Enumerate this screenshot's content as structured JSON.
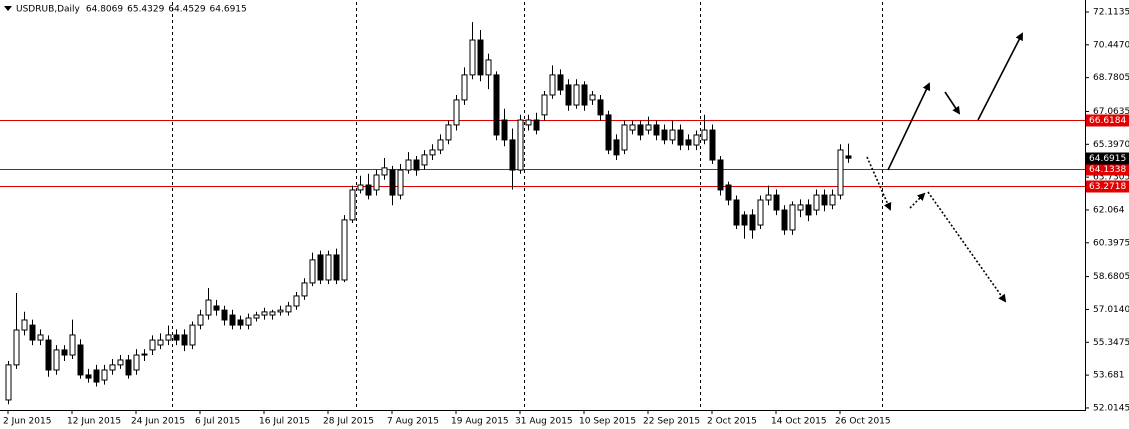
{
  "chart_data": {
    "type": "candlestick",
    "title": "USDRUB,Daily",
    "categories": [
      "2 Jun 2015",
      null,
      null,
      null,
      null,
      null,
      null,
      null,
      "12 Jun 2015",
      null,
      null,
      null,
      null,
      null,
      null,
      null,
      "24 Jun 2015",
      null,
      null,
      null,
      null,
      null,
      null,
      null,
      "6 Jul 2015",
      null,
      null,
      null,
      null,
      null,
      null,
      null,
      "16 Jul 2015",
      null,
      null,
      null,
      null,
      null,
      null,
      null,
      "28 Jul 2015",
      null,
      null,
      null,
      null,
      null,
      null,
      null,
      "7 Aug 2015",
      null,
      null,
      null,
      null,
      null,
      null,
      null,
      "19 Aug 2015",
      null,
      null,
      null,
      null,
      null,
      null,
      null,
      "31 Aug 2015",
      null,
      null,
      null,
      null,
      null,
      null,
      null,
      "10 Sep 2015",
      null,
      null,
      null,
      null,
      null,
      null,
      null,
      "22 Sep 2015",
      null,
      null,
      null,
      null,
      null,
      null,
      null,
      "2 Oct 2015",
      null,
      null,
      null,
      null,
      null,
      null,
      null,
      "14 Oct 2015",
      null,
      null,
      null,
      null,
      null,
      null,
      null,
      "26 Oct 2015",
      null
    ],
    "open": [
      52.42,
      54.2,
      55.97,
      56.22,
      55.46,
      55.46,
      53.94,
      54.96,
      54.7,
      55.21,
      53.69,
      53.94,
      53.43,
      53.94,
      54.2,
      54.45,
      53.94,
      54.7,
      54.96,
      55.21,
      55.46,
      55.72,
      55.72,
      55.21,
      56.22,
      56.73,
      57.19,
      56.98,
      56.73,
      56.48,
      56.22,
      56.58,
      56.73,
      56.73,
      56.89,
      56.89,
      57.19,
      57.7,
      58.36,
      59.78,
      58.51,
      59.78,
      58.51,
      61.56,
      63.08,
      63.33,
      63.08,
      63.84,
      64.09,
      62.82,
      64.09,
      64.6,
      64.35,
      64.86,
      65.11,
      65.62,
      66.38,
      67.65,
      68.92,
      70.69,
      68.92,
      68.92,
      66.63,
      65.62,
      64.09,
      66.38,
      66.63,
      66.89,
      67.9,
      68.92,
      68.41,
      67.39,
      68.41,
      67.65,
      67.65,
      66.89,
      65.62,
      65.11,
      66.12,
      66.38,
      66.12,
      66.38,
      66.12,
      65.62,
      66.12,
      65.62,
      65.36,
      65.62,
      66.12,
      64.6,
      63.33,
      62.57,
      61.81,
      61.81,
      61.3,
      62.57,
      62.82,
      62.06,
      61.05,
      62.06,
      62.32,
      62.06,
      62.82,
      62.32,
      62.82,
      64.8069
    ],
    "high": [
      54.4,
      57.85,
      56.9,
      56.5,
      56.0,
      55.7,
      55.2,
      55.2,
      56.5,
      55.5,
      54.0,
      54.2,
      54.2,
      54.5,
      54.7,
      54.7,
      55.0,
      55.0,
      55.7,
      55.8,
      56.2,
      56.0,
      56.0,
      56.4,
      57.0,
      58.1,
      57.5,
      57.2,
      57.0,
      56.7,
      56.8,
      56.9,
      57.1,
      57.0,
      57.2,
      57.4,
      57.9,
      58.6,
      59.9,
      60.0,
      60.0,
      60.1,
      61.8,
      63.3,
      63.8,
      63.9,
      64.1,
      64.7,
      64.3,
      64.4,
      65.0,
      64.8,
      65.1,
      65.4,
      65.9,
      66.6,
      67.9,
      69.3,
      71.6,
      71.2,
      70.0,
      69.1,
      67.2,
      66.2,
      66.9,
      66.9,
      67.0,
      68.1,
      69.4,
      69.2,
      68.7,
      68.7,
      68.6,
      68.1,
      67.9,
      67.1,
      65.9,
      66.6,
      66.6,
      66.6,
      66.8,
      66.6,
      66.4,
      66.6,
      66.4,
      65.9,
      66.1,
      66.9,
      66.4,
      64.8,
      63.5,
      62.8,
      62.0,
      62.1,
      62.8,
      63.3,
      63.1,
      62.3,
      62.5,
      62.6,
      62.6,
      63.1,
      63.1,
      63.1,
      65.4,
      65.4329
    ],
    "low": [
      52.2,
      54.0,
      55.7,
      55.2,
      55.2,
      53.6,
      53.7,
      54.4,
      54.5,
      53.5,
      53.3,
      53.1,
      53.2,
      53.7,
      54.0,
      53.5,
      53.7,
      54.4,
      54.7,
      55.0,
      55.2,
      55.2,
      54.9,
      55.0,
      56.0,
      56.5,
      56.7,
      56.2,
      56.0,
      56.0,
      56.0,
      56.4,
      56.5,
      56.5,
      56.7,
      56.7,
      57.0,
      57.5,
      58.2,
      58.3,
      58.3,
      58.3,
      58.4,
      61.4,
      62.9,
      62.6,
      62.8,
      63.6,
      62.3,
      62.6,
      63.9,
      63.8,
      64.1,
      64.6,
      64.9,
      65.4,
      66.1,
      67.4,
      68.7,
      68.6,
      68.2,
      65.6,
      65.3,
      63.1,
      63.9,
      66.1,
      65.9,
      66.6,
      67.7,
      67.9,
      67.1,
      67.2,
      67.1,
      67.4,
      66.6,
      64.9,
      64.6,
      64.9,
      65.9,
      65.6,
      65.9,
      65.6,
      65.4,
      65.4,
      65.1,
      65.1,
      65.1,
      65.4,
      64.4,
      62.8,
      62.3,
      61.1,
      60.6,
      60.6,
      61.1,
      62.3,
      61.8,
      60.8,
      60.8,
      61.7,
      61.5,
      61.8,
      62.0,
      62.1,
      62.6,
      64.4529
    ],
    "close": [
      54.2,
      55.97,
      56.48,
      55.46,
      55.72,
      53.94,
      54.96,
      54.7,
      55.72,
      53.69,
      53.53,
      53.33,
      53.94,
      54.2,
      54.45,
      53.69,
      54.7,
      54.75,
      55.46,
      55.46,
      55.72,
      55.46,
      55.21,
      56.22,
      56.73,
      57.49,
      56.98,
      56.48,
      56.22,
      56.22,
      56.58,
      56.73,
      56.89,
      56.89,
      56.98,
      57.19,
      57.7,
      58.36,
      59.53,
      58.51,
      59.78,
      58.51,
      61.56,
      63.08,
      63.33,
      62.82,
      63.84,
      64.2,
      62.82,
      64.09,
      64.6,
      64.09,
      64.86,
      65.11,
      65.62,
      66.38,
      67.65,
      68.92,
      70.69,
      68.92,
      69.68,
      65.87,
      65.62,
      64.09,
      66.63,
      66.63,
      66.12,
      67.9,
      68.92,
      68.15,
      67.39,
      68.41,
      67.39,
      67.9,
      66.89,
      65.11,
      64.86,
      66.38,
      66.38,
      65.87,
      66.38,
      65.87,
      65.62,
      66.12,
      65.36,
      65.36,
      65.87,
      66.12,
      64.6,
      63.08,
      62.57,
      61.3,
      61.3,
      61.05,
      62.57,
      62.82,
      62.06,
      61.05,
      62.32,
      62.32,
      61.81,
      62.82,
      62.32,
      62.82,
      65.11,
      64.6915
    ],
    "ylim": [
      51.91,
      72.62
    ],
    "yticks": [
      72.1135,
      {
        "value": 70.447,
        "label": "70.4470"
      },
      68.7805,
      67.0635,
      {
        "value": 65.397,
        "label": "65.3970"
      },
      63.7305,
      62.064,
      60.3975,
      58.6805,
      {
        "value": 57.014,
        "label": "57.0140"
      },
      55.3475,
      53.681,
      52.0145
    ],
    "hlines": [
      {
        "value": 66.6184,
        "color": "#e00000"
      },
      {
        "value": 64.1338,
        "color": "#e00000"
      },
      {
        "value": 63.2718,
        "color": "#e00000"
      }
    ],
    "up_color": "#ffffff",
    "down_color": "#000000"
  }
}
